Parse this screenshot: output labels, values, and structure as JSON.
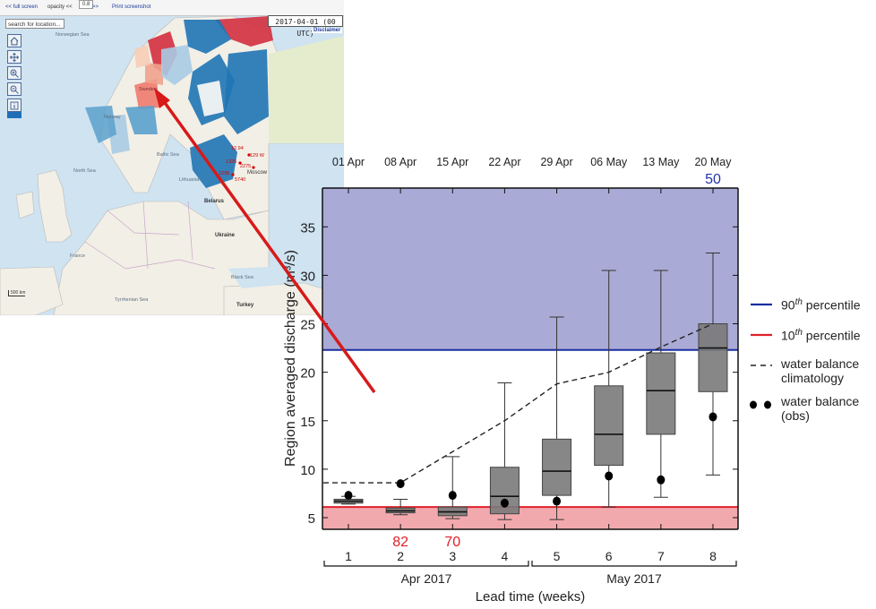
{
  "map": {
    "toolbar": {
      "full_screen": "<< full screen",
      "opacity_label": "opacity <<",
      "opacity_value": "0.8",
      "opacity_more": ">>",
      "print": "Print screenshot"
    },
    "search_placeholder": "search for location...",
    "date": "2017-04-01 (00 UTC)",
    "disclaimer": "Disclaimer",
    "labels": {
      "norwegian_sea": "Norwegian Sea",
      "sweden": "Sweden",
      "norway": "Norway",
      "north_sea": "North Sea",
      "baltic_sea": "Baltic Sea",
      "belarus": "Belarus",
      "ukraine": "Ukraine",
      "moscow": "Moscow",
      "france": "France",
      "black_sea": "Black Sea",
      "tyrrhenian_sea": "Tyrrhenian Sea",
      "turkey": "Turkey",
      "lithuania": "Lithuania",
      "red_vals": [
        "12.94",
        "129 W",
        "1325",
        "2275",
        "5740",
        "1235"
      ]
    },
    "scale": "500 km",
    "colors": {
      "sea": "#cfe3f1",
      "land": "#f2efe6",
      "dark_blue": "#1f74b5",
      "mid_blue": "#5aa0cc",
      "light_blue": "#a9cbe3",
      "red": "#d32f3f",
      "salmon": "#f0a28c",
      "peach": "#f7cdb6"
    }
  },
  "arrow": {
    "color": "#d71a1a"
  },
  "chart_data": {
    "type": "box",
    "ylabel": "Region averaged discharge (m³/s)",
    "xlabel": "Lead time (weeks)",
    "ylim": [
      3.8,
      39
    ],
    "yticks": [
      5,
      10,
      15,
      20,
      25,
      30,
      35
    ],
    "weeks": [
      1,
      2,
      3,
      4,
      5,
      6,
      7,
      8
    ],
    "dates": [
      "01 Apr",
      "08 Apr",
      "15 Apr",
      "22 Apr",
      "29 Apr",
      "06 May",
      "13 May",
      "20 May"
    ],
    "months": [
      "Apr 2017",
      "May 2017"
    ],
    "boxes": [
      {
        "week": 1,
        "min": 6.4,
        "q1": 6.5,
        "median": 6.7,
        "q3": 6.9,
        "max": 7.2
      },
      {
        "week": 2,
        "min": 5.3,
        "q1": 5.5,
        "median": 5.7,
        "q3": 6.0,
        "max": 6.9
      },
      {
        "week": 3,
        "min": 4.9,
        "q1": 5.2,
        "median": 5.6,
        "q3": 6.1,
        "max": 11.3
      },
      {
        "week": 4,
        "min": 4.8,
        "q1": 5.4,
        "median": 7.2,
        "q3": 10.2,
        "max": 18.9
      },
      {
        "week": 5,
        "min": 4.8,
        "q1": 7.3,
        "median": 9.8,
        "q3": 13.1,
        "max": 25.7
      },
      {
        "week": 6,
        "min": 6.1,
        "q1": 10.4,
        "median": 13.6,
        "q3": 18.6,
        "max": 30.5
      },
      {
        "week": 7,
        "min": 7.1,
        "q1": 13.6,
        "median": 18.1,
        "q3": 22.0,
        "max": 30.5
      },
      {
        "week": 8,
        "min": 9.4,
        "q1": 18.0,
        "median": 22.5,
        "q3": 25.0,
        "max": 32.3
      }
    ],
    "climatology": [
      8.6,
      8.6,
      11.8,
      15.0,
      18.8,
      20.0,
      22.6,
      25.0
    ],
    "observations": [
      7.3,
      8.5,
      7.3,
      6.5,
      6.7,
      9.3,
      8.9,
      15.4
    ],
    "p90": 22.3,
    "p10": 6.1,
    "annotations": [
      {
        "week": 2,
        "text": "82",
        "color": "#e0202a",
        "position": "bottom"
      },
      {
        "week": 3,
        "text": "70",
        "color": "#e0202a",
        "position": "bottom"
      },
      {
        "week": 8,
        "text": "50",
        "color": "#2233aa",
        "position": "top"
      }
    ],
    "legend": [
      {
        "kind": "line",
        "color": "#1a2fa0",
        "text": "90",
        "sup": "th",
        "rest": " percentile"
      },
      {
        "kind": "line",
        "color": "#e0202a",
        "text": "10",
        "sup": "th",
        "rest": " percentile"
      },
      {
        "kind": "dashed",
        "color": "#222222",
        "text": "water balance\nclimatology"
      },
      {
        "kind": "dots",
        "color": "#000000",
        "text": "water balance\n(obs)"
      }
    ],
    "colors": {
      "upper_band": "#aaaad6",
      "lower_band": "#f2a9ae",
      "box_fill": "#7a7a7a",
      "p90_line": "#1a2fa0",
      "p10_line": "#e0202a"
    }
  }
}
